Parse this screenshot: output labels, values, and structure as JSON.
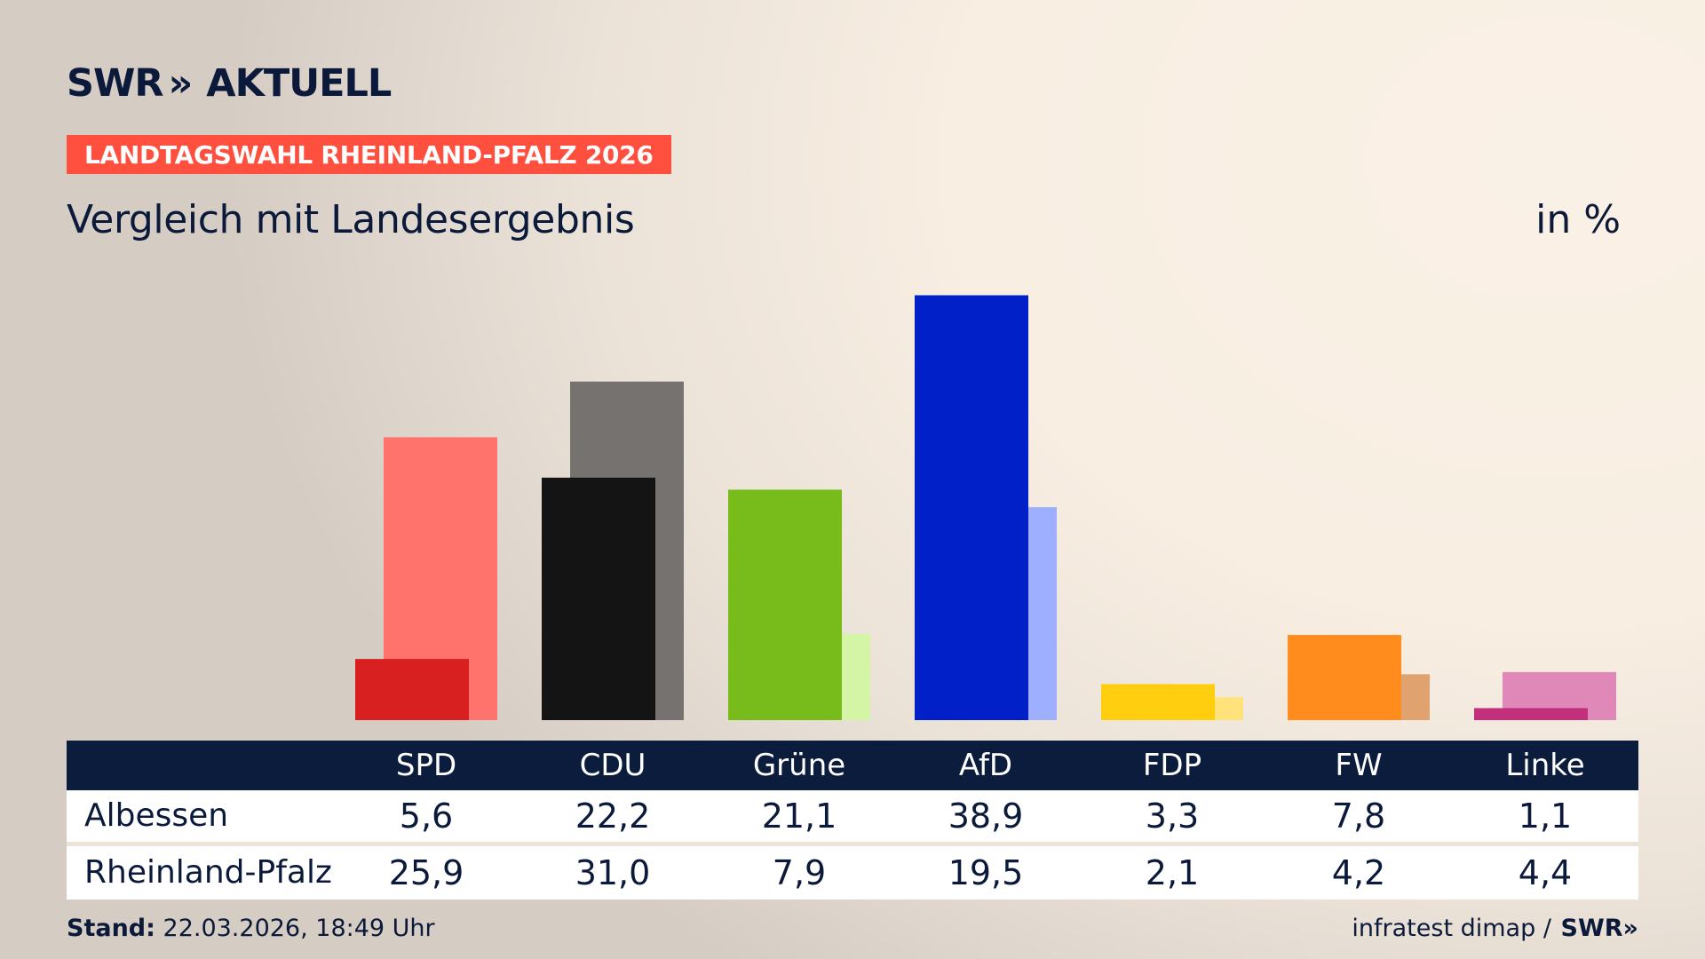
{
  "header": {
    "logo_left": "SWR",
    "logo_separator": "»",
    "logo_right": "AKTUELL",
    "badge": "LANDTAGSWAHL RHEINLAND-PFALZ 2026",
    "subtitle": "Vergleich mit Landesergebnis",
    "unit": "in %"
  },
  "chart_data": {
    "type": "bar",
    "title": "Vergleich mit Landesergebnis",
    "ylabel": "in %",
    "ylim": [
      0,
      40
    ],
    "categories": [
      "SPD",
      "CDU",
      "Grüne",
      "AfD",
      "FDP",
      "FW",
      "Linke"
    ],
    "series": [
      {
        "name": "Albessen",
        "values": [
          5.6,
          22.2,
          21.1,
          38.9,
          3.3,
          7.8,
          1.1
        ]
      },
      {
        "name": "Rheinland-Pfalz",
        "values": [
          25.9,
          31.0,
          7.9,
          19.5,
          2.1,
          4.2,
          4.4
        ]
      }
    ],
    "display_values": {
      "Albessen": [
        "5,6",
        "22,2",
        "21,1",
        "38,9",
        "3,3",
        "7,8",
        "1,1"
      ],
      "Rheinland-Pfalz": [
        "25,9",
        "31,0",
        "7,9",
        "19,5",
        "2,1",
        "4,2",
        "4,4"
      ]
    },
    "colors": {
      "primary": [
        "#d7201f",
        "#141414",
        "#78bc1c",
        "#0120c8",
        "#ffcf0f",
        "#ff8c1c",
        "#c22f7a"
      ],
      "secondary": [
        "#ff736c",
        "#75726f",
        "#d4f5a6",
        "#9fafff",
        "#ffe37a",
        "#e0a370",
        "#e089b9"
      ]
    }
  },
  "footer": {
    "stand_label": "Stand:",
    "stand_value": "22.03.2026, 18:49 Uhr",
    "source": "infratest dimap /",
    "source_logo": "SWR»"
  }
}
